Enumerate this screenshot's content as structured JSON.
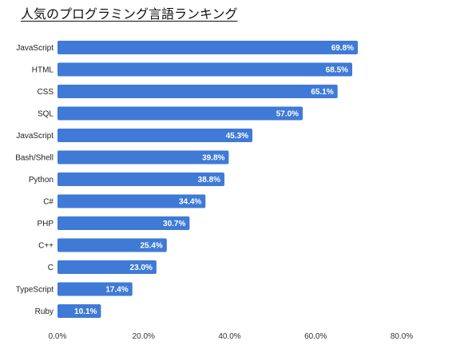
{
  "chart_data": {
    "type": "bar",
    "orientation": "horizontal",
    "title": "人気のプログラミング言語ランキング",
    "xlabel": "",
    "ylabel": "",
    "categories": [
      "JavaScript",
      "HTML",
      "CSS",
      "SQL",
      "JavaScript",
      "Bash/Shell",
      "Python",
      "C#",
      "PHP",
      "C++",
      "C",
      "TypeScript",
      "Ruby"
    ],
    "values": [
      69.8,
      68.5,
      65.1,
      57.0,
      45.3,
      39.8,
      38.8,
      34.4,
      30.7,
      25.4,
      23.0,
      17.4,
      10.1
    ],
    "value_labels": [
      "69.8%",
      "68.5%",
      "65.1%",
      "57.0%",
      "45.3%",
      "39.8%",
      "38.8%",
      "34.4%",
      "30.7%",
      "25.4%",
      "23.0%",
      "17.4%",
      "10.1%"
    ],
    "xlim": [
      0,
      80
    ],
    "x_ticks": [
      0,
      20,
      40,
      60,
      80
    ],
    "x_tick_labels": [
      "0.0%",
      "20.0%",
      "40.0%",
      "60.0%",
      "80.0%"
    ],
    "grid": false,
    "legend": "none",
    "bar_color": "#3f7ad6",
    "label_color": "#ffffff"
  }
}
